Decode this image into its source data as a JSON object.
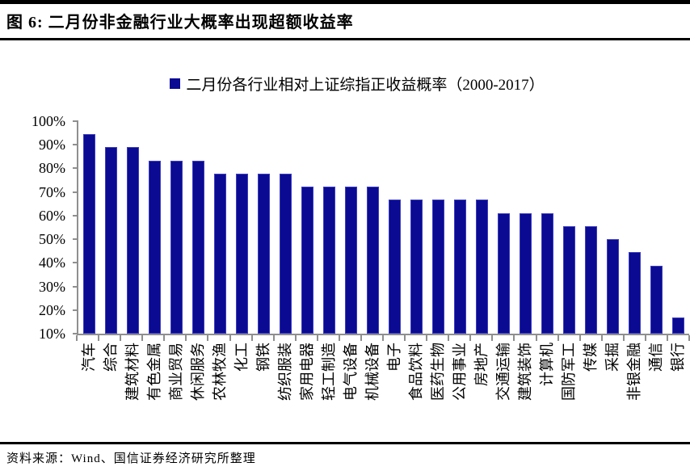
{
  "header": {
    "title": "图 6:  二月份非金融行业大概率出现超额收益率"
  },
  "legend": {
    "label": "二月份各行业相对上证综指正收益概率（2000-2017）"
  },
  "chart_data": {
    "type": "bar",
    "title": "二月份各行业相对上证综指正收益概率（2000-2017）",
    "categories": [
      "汽车",
      "综合",
      "建筑材料",
      "有色金属",
      "商业贸易",
      "休闲服务",
      "农林牧渔",
      "化工",
      "钢铁",
      "纺织服装",
      "家用电器",
      "轻工制造",
      "电气设备",
      "机械设备",
      "电子",
      "食品饮料",
      "医药生物",
      "公用事业",
      "房地产",
      "交通运输",
      "建筑装饰",
      "计算机",
      "国防军工",
      "传媒",
      "采掘",
      "非银金融",
      "通信",
      "银行"
    ],
    "values": [
      94.4,
      88.9,
      88.9,
      83.3,
      83.3,
      83.3,
      77.8,
      77.8,
      77.8,
      77.8,
      72.2,
      72.2,
      72.2,
      72.2,
      66.7,
      66.7,
      66.7,
      66.7,
      66.7,
      61.1,
      61.1,
      61.1,
      55.6,
      55.6,
      50.0,
      44.4,
      38.9,
      16.7
    ],
    "unit": "%",
    "ylim": [
      10,
      100
    ],
    "ytick_labels": [
      "100%",
      "90%",
      "80%",
      "70%",
      "60%",
      "50%",
      "40%",
      "30%",
      "20%",
      "10%"
    ],
    "grid": false,
    "legend_position": "top-center",
    "bar_color": "#0a0a93",
    "bar_border_color": "#3d3dbe",
    "axis_color": "#8f8f8f",
    "xlabel": "",
    "ylabel": ""
  },
  "footer": {
    "source": "资料来源：Wind、国信证券经济研究所整理"
  }
}
